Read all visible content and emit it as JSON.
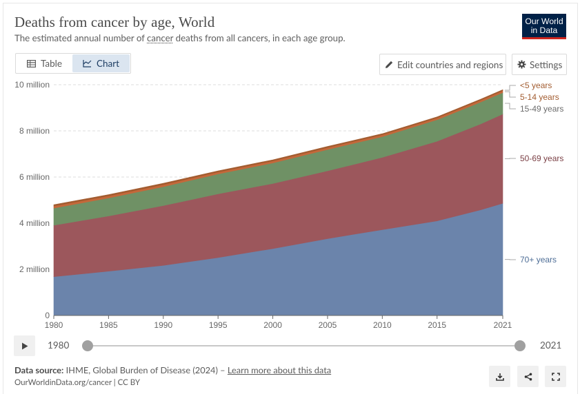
{
  "header": {
    "title": "Deaths from cancer by age, World",
    "subtitle_pre": "The estimated annual number of ",
    "subtitle_link": "cancer",
    "subtitle_post": " deaths from all cancers, in each age group.",
    "logo_line1": "Our World",
    "logo_line2": "in Data"
  },
  "tabs": {
    "table": "Table",
    "chart": "Chart"
  },
  "controls": {
    "edit": "Edit countries and regions",
    "settings": "Settings"
  },
  "timeline": {
    "start": "1980",
    "end": "2021",
    "play_icon": "play-icon"
  },
  "footer": {
    "source_label": "Data source:",
    "source_text": " IHME, Global Burden of Disease (2024) – ",
    "learn_more": "Learn more about this data",
    "url": "OurWorldinData.org/cancer | CC BY"
  },
  "colors": {
    "70+ years": "#6b84ab",
    "50-69 years": "#9c575c",
    "15-49 years": "#6f9165",
    "5-14 years": "#c4683a",
    "<5 years": "#a25c30",
    "grid": "#dcdcdc",
    "axis": "#666666"
  },
  "chart_data": {
    "type": "area",
    "stacked": true,
    "x": [
      1980,
      1985,
      1990,
      1995,
      2000,
      2005,
      2010,
      2015,
      2019,
      2021
    ],
    "xticks": [
      "1980",
      "1985",
      "1990",
      "1995",
      "2000",
      "2005",
      "2010",
      "2015",
      "2021"
    ],
    "ylim": [
      0,
      10000000
    ],
    "yticks": [
      "0",
      "2 million",
      "4 million",
      "6 million",
      "8 million",
      "10 million"
    ],
    "grid": true,
    "series": [
      {
        "name": "70+ years",
        "values": [
          1680000,
          1920000,
          2170000,
          2510000,
          2900000,
          3330000,
          3720000,
          4100000,
          4580000,
          4860000
        ]
      },
      {
        "name": "50-69 years",
        "values": [
          2230000,
          2390000,
          2590000,
          2760000,
          2820000,
          2940000,
          3130000,
          3450000,
          3720000,
          3870000
        ]
      },
      {
        "name": "15-49 years",
        "values": [
          740000,
          780000,
          820000,
          860000,
          890000,
          920000,
          900000,
          930000,
          950000,
          930000
        ]
      },
      {
        "name": "5-14 years",
        "values": [
          90000,
          90000,
          90000,
          85000,
          85000,
          85000,
          80000,
          80000,
          80000,
          80000
        ]
      },
      {
        "name": "<5 years",
        "values": [
          60000,
          60000,
          58000,
          55000,
          52000,
          50000,
          48000,
          46000,
          45000,
          44000
        ]
      }
    ],
    "legend_order": [
      "<5 years",
      "5-14 years",
      "15-49 years",
      "50-69 years",
      "70+ years"
    ],
    "legend_placement": "right, inline labels"
  }
}
